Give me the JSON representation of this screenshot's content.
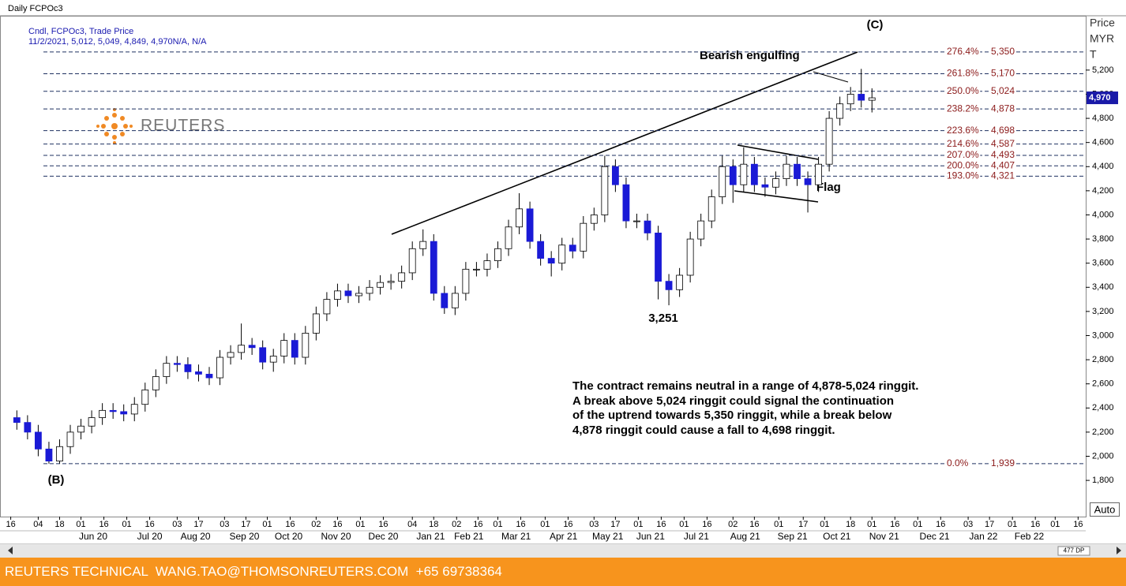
{
  "header": {
    "title": "Daily FCPOc3",
    "legend_line1": "Cndl, FCPOc3, Trade Price",
    "legend_line2": "11/2/2021, 5,012, 5,049, 4,849, 4,970N/A, N/A"
  },
  "chart_data": {
    "type": "candlestick",
    "x": [
      "2020-04-20",
      "2020-04-27",
      "2020-05-04",
      "2020-05-11",
      "2020-05-18",
      "2020-05-25",
      "2020-06-01",
      "2020-06-08",
      "2020-06-15",
      "2020-06-22",
      "2020-06-29",
      "2020-07-06",
      "2020-07-13",
      "2020-07-20",
      "2020-07-27",
      "2020-08-03",
      "2020-08-10",
      "2020-08-17",
      "2020-08-24",
      "2020-08-31",
      "2020-09-07",
      "2020-09-14",
      "2020-09-21",
      "2020-09-28",
      "2020-10-05",
      "2020-10-12",
      "2020-10-19",
      "2020-10-26",
      "2020-11-02",
      "2020-11-09",
      "2020-11-16",
      "2020-11-23",
      "2020-11-30",
      "2020-12-07",
      "2020-12-14",
      "2020-12-21",
      "2020-12-28",
      "2021-01-04",
      "2021-01-11",
      "2021-01-18",
      "2021-01-25",
      "2021-02-01",
      "2021-02-08",
      "2021-02-15",
      "2021-02-22",
      "2021-03-01",
      "2021-03-08",
      "2021-03-15",
      "2021-03-22",
      "2021-03-29",
      "2021-04-05",
      "2021-04-12",
      "2021-04-19",
      "2021-04-26",
      "2021-05-03",
      "2021-05-10",
      "2021-05-17",
      "2021-05-24",
      "2021-05-31",
      "2021-06-07",
      "2021-06-14",
      "2021-06-21",
      "2021-06-28",
      "2021-07-05",
      "2021-07-12",
      "2021-07-19",
      "2021-07-26",
      "2021-08-02",
      "2021-08-09",
      "2021-08-16",
      "2021-08-23",
      "2021-08-30",
      "2021-09-06",
      "2021-09-13",
      "2021-09-20",
      "2021-09-27",
      "2021-10-04",
      "2021-10-11",
      "2021-10-18",
      "2021-10-25",
      "2021-11-01"
    ],
    "open": [
      2320,
      2280,
      2200,
      2060,
      1960,
      2080,
      2200,
      2250,
      2320,
      2380,
      2370,
      2350,
      2430,
      2550,
      2660,
      2770,
      2760,
      2700,
      2680,
      2650,
      2820,
      2860,
      2920,
      2900,
      2780,
      2830,
      2960,
      2820,
      3020,
      3180,
      3300,
      3370,
      3330,
      3350,
      3400,
      3440,
      3450,
      3520,
      3720,
      3780,
      3350,
      3230,
      3350,
      3550,
      3550,
      3620,
      3720,
      3900,
      4050,
      3780,
      3640,
      3600,
      3750,
      3700,
      3930,
      4000,
      4400,
      4250,
      3950,
      3950,
      3850,
      3450,
      3380,
      3500,
      3800,
      3950,
      4150,
      4400,
      4250,
      4420,
      4250,
      4230,
      4300,
      4420,
      4300,
      4250,
      4420,
      4800,
      4920,
      5000,
      4950
    ],
    "high": [
      2380,
      2340,
      2260,
      2120,
      2140,
      2260,
      2310,
      2380,
      2440,
      2440,
      2430,
      2490,
      2610,
      2720,
      2830,
      2830,
      2820,
      2760,
      2740,
      2880,
      2920,
      3100,
      2980,
      2960,
      2890,
      3020,
      3020,
      3080,
      3240,
      3360,
      3430,
      3430,
      3410,
      3460,
      3500,
      3510,
      3580,
      3780,
      3880,
      3840,
      3410,
      3410,
      3610,
      3610,
      3680,
      3780,
      3960,
      4180,
      4110,
      3840,
      3700,
      3810,
      3810,
      3990,
      4060,
      4490,
      4460,
      4310,
      4010,
      4010,
      3910,
      3510,
      3560,
      3860,
      4010,
      4210,
      4490,
      4460,
      4560,
      4480,
      4310,
      4360,
      4490,
      4480,
      4360,
      4480,
      4860,
      4980,
      5060,
      5210,
      5049
    ],
    "low": [
      2220,
      2140,
      2000,
      1939,
      1940,
      2020,
      2140,
      2190,
      2260,
      2310,
      2290,
      2290,
      2370,
      2490,
      2600,
      2700,
      2640,
      2620,
      2590,
      2590,
      2760,
      2800,
      2840,
      2720,
      2700,
      2770,
      2760,
      2760,
      2960,
      3120,
      3240,
      3270,
      3270,
      3290,
      3340,
      3380,
      3390,
      3460,
      3660,
      3290,
      3180,
      3170,
      3290,
      3490,
      3490,
      3560,
      3660,
      3840,
      3720,
      3580,
      3490,
      3540,
      3640,
      3640,
      3870,
      3940,
      4190,
      3890,
      3890,
      3790,
      3300,
      3251,
      3320,
      3440,
      3740,
      3890,
      4090,
      4100,
      4190,
      4190,
      4150,
      4170,
      4240,
      4240,
      4020,
      4190,
      4360,
      4740,
      4860,
      4890,
      4849
    ],
    "close": [
      2280,
      2200,
      2060,
      1960,
      2080,
      2200,
      2250,
      2320,
      2380,
      2370,
      2350,
      2430,
      2550,
      2660,
      2770,
      2760,
      2700,
      2680,
      2650,
      2820,
      2860,
      2920,
      2900,
      2780,
      2830,
      2960,
      2820,
      3020,
      3180,
      3300,
      3370,
      3330,
      3350,
      3400,
      3440,
      3450,
      3520,
      3720,
      3780,
      3350,
      3230,
      3350,
      3550,
      3550,
      3620,
      3720,
      3900,
      4050,
      3780,
      3640,
      3600,
      3750,
      3700,
      3930,
      4000,
      4400,
      4250,
      3950,
      3950,
      3850,
      3450,
      3380,
      3500,
      3800,
      3950,
      4150,
      4400,
      4250,
      4420,
      4250,
      4230,
      4300,
      4420,
      4300,
      4250,
      4420,
      4800,
      4920,
      5000,
      4950,
      4970
    ],
    "up_color": "#ffffff",
    "down_color": "#1a1ad6",
    "ylim": [
      1500,
      5650
    ],
    "yticks": [
      {
        "value": 1800,
        "label": "1,800"
      },
      {
        "value": 2000,
        "label": "2,000"
      },
      {
        "value": 2200,
        "label": "2,200"
      },
      {
        "value": 2400,
        "label": "2,400"
      },
      {
        "value": 2600,
        "label": "2,600"
      },
      {
        "value": 2800,
        "label": "2,800"
      },
      {
        "value": 3000,
        "label": "3,000"
      },
      {
        "value": 3200,
        "label": "3,200"
      },
      {
        "value": 3400,
        "label": "3,400"
      },
      {
        "value": 3600,
        "label": "3,600"
      },
      {
        "value": 3800,
        "label": "3,800"
      },
      {
        "value": 4000,
        "label": "4,000"
      },
      {
        "value": 4200,
        "label": "4,200"
      },
      {
        "value": 4400,
        "label": "4,400"
      },
      {
        "value": 4600,
        "label": "4,600"
      },
      {
        "value": 4800,
        "label": "4,800"
      },
      {
        "value": 5000,
        "label": "5,000"
      },
      {
        "value": 5200,
        "label": "5,200"
      }
    ],
    "y_axis_label": [
      "Price",
      "MYR",
      "T"
    ],
    "xlim": [
      "2020-04-10",
      "2022-03-21"
    ],
    "xticks": [
      {
        "value": "2020-04-16",
        "label": "16"
      },
      {
        "value": "2020-05-04",
        "label": "04"
      },
      {
        "value": "2020-05-18",
        "label": "18"
      },
      {
        "value": "2020-06-01",
        "label": "01"
      },
      {
        "value": "2020-06-16",
        "label": "16"
      },
      {
        "value": "2020-07-01",
        "label": "01"
      },
      {
        "value": "2020-07-16",
        "label": "16"
      },
      {
        "value": "2020-08-03",
        "label": "03"
      },
      {
        "value": "2020-08-17",
        "label": "17"
      },
      {
        "value": "2020-09-03",
        "label": "03"
      },
      {
        "value": "2020-09-17",
        "label": "17"
      },
      {
        "value": "2020-10-01",
        "label": "01"
      },
      {
        "value": "2020-10-16",
        "label": "16"
      },
      {
        "value": "2020-11-02",
        "label": "02"
      },
      {
        "value": "2020-11-16",
        "label": "16"
      },
      {
        "value": "2020-12-01",
        "label": "01"
      },
      {
        "value": "2020-12-16",
        "label": "16"
      },
      {
        "value": "2021-01-04",
        "label": "04"
      },
      {
        "value": "2021-01-18",
        "label": "18"
      },
      {
        "value": "2021-02-02",
        "label": "02"
      },
      {
        "value": "2021-02-16",
        "label": "16"
      },
      {
        "value": "2021-03-01",
        "label": "01"
      },
      {
        "value": "2021-03-16",
        "label": "16"
      },
      {
        "value": "2021-04-01",
        "label": "01"
      },
      {
        "value": "2021-04-16",
        "label": "16"
      },
      {
        "value": "2021-05-03",
        "label": "03"
      },
      {
        "value": "2021-05-17",
        "label": "17"
      },
      {
        "value": "2021-06-01",
        "label": "01"
      },
      {
        "value": "2021-06-16",
        "label": "16"
      },
      {
        "value": "2021-07-01",
        "label": "01"
      },
      {
        "value": "2021-07-16",
        "label": "16"
      },
      {
        "value": "2021-08-02",
        "label": "02"
      },
      {
        "value": "2021-08-16",
        "label": "16"
      },
      {
        "value": "2021-09-01",
        "label": "01"
      },
      {
        "value": "2021-09-17",
        "label": "17"
      },
      {
        "value": "2021-10-01",
        "label": "01"
      },
      {
        "value": "2021-10-18",
        "label": "18"
      },
      {
        "value": "2021-11-01",
        "label": "01"
      },
      {
        "value": "2021-11-16",
        "label": "16"
      },
      {
        "value": "2021-12-01",
        "label": "01"
      },
      {
        "value": "2021-12-16",
        "label": "16"
      },
      {
        "value": "2022-01-03",
        "label": "03"
      },
      {
        "value": "2022-01-17",
        "label": "17"
      },
      {
        "value": "2022-02-01",
        "label": "01"
      },
      {
        "value": "2022-02-16",
        "label": "16"
      },
      {
        "value": "2022-03-01",
        "label": "01"
      },
      {
        "value": "2022-03-16",
        "label": "16"
      }
    ],
    "month_labels": [
      {
        "value": "2020-06-09",
        "label": "Jun 20"
      },
      {
        "value": "2020-07-16",
        "label": "Jul 20"
      },
      {
        "value": "2020-08-15",
        "label": "Aug 20"
      },
      {
        "value": "2020-09-16",
        "label": "Sep 20"
      },
      {
        "value": "2020-10-15",
        "label": "Oct 20"
      },
      {
        "value": "2020-11-15",
        "label": "Nov 20"
      },
      {
        "value": "2020-12-16",
        "label": "Dec 20"
      },
      {
        "value": "2021-01-16",
        "label": "Jan 21"
      },
      {
        "value": "2021-02-10",
        "label": "Feb 21"
      },
      {
        "value": "2021-03-13",
        "label": "Mar 21"
      },
      {
        "value": "2021-04-13",
        "label": "Apr 21"
      },
      {
        "value": "2021-05-12",
        "label": "May 21"
      },
      {
        "value": "2021-06-09",
        "label": "Jun 21"
      },
      {
        "value": "2021-07-09",
        "label": "Jul 21"
      },
      {
        "value": "2021-08-10",
        "label": "Aug 21"
      },
      {
        "value": "2021-09-10",
        "label": "Sep 21"
      },
      {
        "value": "2021-10-09",
        "label": "Oct 21"
      },
      {
        "value": "2021-11-09",
        "label": "Nov 21"
      },
      {
        "value": "2021-12-12",
        "label": "Dec 21"
      },
      {
        "value": "2022-01-13",
        "label": "Jan 22"
      },
      {
        "value": "2022-02-12",
        "label": "Feb 22"
      }
    ],
    "levels": [
      {
        "pct": "276.4%",
        "value": 5350,
        "label": "5,350"
      },
      {
        "pct": "261.8%",
        "value": 5170,
        "label": "5,170"
      },
      {
        "pct": "250.0%",
        "value": 5024,
        "label": "5,024"
      },
      {
        "pct": "238.2%",
        "value": 4878,
        "label": "4,878"
      },
      {
        "pct": "223.6%",
        "value": 4698,
        "label": "4,698"
      },
      {
        "pct": "214.6%",
        "value": 4587,
        "label": "4,587"
      },
      {
        "pct": "207.0%",
        "value": 4493,
        "label": "4,493"
      },
      {
        "pct": "200.0%",
        "value": 4407,
        "label": "4,407"
      },
      {
        "pct": "193.0%",
        "value": 4321,
        "label": "4,321"
      },
      {
        "pct": "0.0%",
        "value": 1939,
        "label": "1,939"
      }
    ],
    "level_color": "#1f3060",
    "last_price": {
      "value": 4970,
      "label": "4,970"
    },
    "annotations": [
      {
        "text": "(C)"
      },
      {
        "text": "(B)"
      },
      {
        "text": "Bearish engulfing"
      },
      {
        "text": "Flag"
      },
      {
        "text": "3,251"
      }
    ],
    "commentary": [
      "The contract remains neutral in a range of 4,878-5,024 ringgit.",
      "A break above 5,024 ringgit could signal the continuation",
      "of the uptrend towards 5,350 ringgit, while a break below",
      "4,878 ringgit could cause a fall to 4,698 ringgit."
    ]
  },
  "ui": {
    "logo": "REUTERS",
    "auto_button": "Auto",
    "scroll_info": "477 DP",
    "footer": "REUTERS TECHNICAL  WANG.TAO@THOMSONREUTERS.COM  +65 69738364"
  }
}
